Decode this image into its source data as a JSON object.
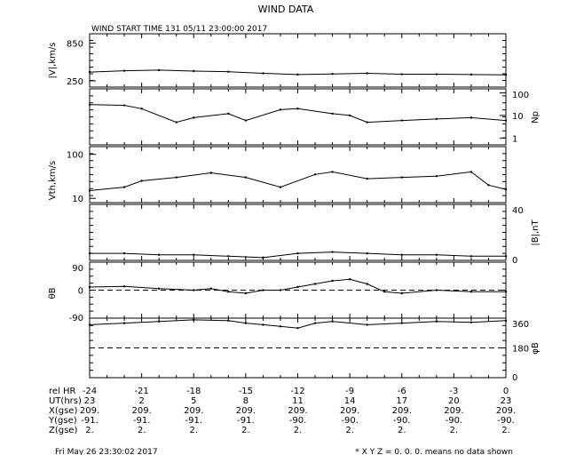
{
  "title": "WIND DATA",
  "subtitle": "WIND START TIME 131 05/11 23:00:00 2017",
  "footer": {
    "timestamp": "Fri May 26 23:30:02 2017",
    "note": "* X Y Z = 0. 0. 0. means no data shown"
  },
  "chart_data": [
    {
      "type": "line",
      "panel": "speed",
      "ylabel": "|V|,km/s",
      "ytick_labels_left": [
        "850",
        "250"
      ],
      "ylim": [
        150,
        1000
      ],
      "x": [
        -24,
        -22,
        -20,
        -18,
        -16,
        -14,
        -12,
        -10,
        -8,
        -6,
        -4,
        -2,
        0
      ],
      "values": [
        390,
        410,
        420,
        405,
        395,
        370,
        350,
        360,
        370,
        355,
        355,
        350,
        345
      ]
    },
    {
      "type": "line",
      "panel": "density",
      "ylabel_right": "Np",
      "ytick_labels_right": [
        "100",
        "10",
        "1"
      ],
      "yscale": "log",
      "ylim": [
        0.5,
        150
      ],
      "x": [
        -24,
        -22,
        -21,
        -19,
        -18,
        -16,
        -15,
        -13,
        -12,
        -10,
        -9,
        -8,
        -6,
        -4,
        -2,
        0
      ],
      "values": [
        30,
        28,
        20,
        5,
        8,
        12,
        6,
        18,
        20,
        12,
        10,
        5,
        6,
        7,
        8,
        6
      ]
    },
    {
      "type": "line",
      "panel": "thermal_speed",
      "ylabel": "Vth,km/s",
      "ytick_labels_left": [
        "100",
        "10"
      ],
      "yscale": "log",
      "ylim": [
        8,
        150
      ],
      "x": [
        -24,
        -22,
        -21,
        -19,
        -17,
        -15,
        -13,
        -11,
        -10,
        -8,
        -6,
        -4,
        -2,
        -1,
        0
      ],
      "values": [
        15,
        18,
        25,
        30,
        38,
        30,
        18,
        35,
        40,
        28,
        30,
        32,
        40,
        20,
        16
      ]
    },
    {
      "type": "line",
      "panel": "field_magnitude",
      "ylabel_right": "|B|,nT",
      "ytick_labels_right": [
        "40",
        "0"
      ],
      "ylim": [
        0,
        40
      ],
      "x": [
        -24,
        -22,
        -20,
        -18,
        -16,
        -14,
        -12,
        -10,
        -8,
        -6,
        -4,
        -2,
        0
      ],
      "values": [
        5,
        5,
        4,
        4,
        3,
        2,
        5,
        6,
        5,
        4,
        4,
        3,
        3
      ]
    },
    {
      "type": "scatter",
      "panel": "theta_b",
      "ylabel": "θB",
      "ytick_labels_left": [
        "90",
        "0",
        "-90"
      ],
      "ylim": [
        -90,
        90
      ],
      "x": [
        -24,
        -22,
        -20,
        -18,
        -17,
        -16,
        -15,
        -14,
        -13,
        -12,
        -11,
        -10,
        -9,
        -8,
        -7,
        -6,
        -4,
        -2,
        0
      ],
      "values": [
        10,
        12,
        5,
        0,
        5,
        -5,
        -10,
        0,
        0,
        10,
        20,
        30,
        35,
        20,
        -5,
        -10,
        0,
        -5,
        -5
      ]
    },
    {
      "type": "scatter",
      "panel": "phi_b",
      "ylabel_right": "φB",
      "ytick_labels_right": [
        "360",
        "180",
        "0"
      ],
      "ylim": [
        0,
        360
      ],
      "x": [
        -24,
        -22,
        -20,
        -18,
        -16,
        -15,
        -14,
        -13,
        -12,
        -11,
        -10,
        -8,
        -6,
        -4,
        -2,
        0
      ],
      "values": [
        320,
        330,
        340,
        350,
        345,
        330,
        320,
        310,
        300,
        330,
        340,
        320,
        330,
        340,
        335,
        345
      ]
    }
  ],
  "x_axis": {
    "tick_values": [
      -24,
      -21,
      -18,
      -15,
      -12,
      -9,
      -6,
      -3,
      0
    ],
    "rows": [
      {
        "label": "rel HR",
        "values": [
          "-24",
          "-21",
          "-18",
          "-15",
          "-12",
          "-9",
          "-6",
          "-3",
          "0"
        ]
      },
      {
        "label": "UT(hrs)",
        "values": [
          "23",
          "2",
          "5",
          "8",
          "11",
          "14",
          "17",
          "20",
          "23"
        ]
      },
      {
        "label": "X(gse)",
        "values": [
          "209.",
          "209.",
          "209.",
          "209.",
          "209.",
          "209.",
          "209.",
          "209.",
          "209."
        ]
      },
      {
        "label": "Y(gse)",
        "values": [
          "-91.",
          "-91.",
          "-91.",
          "-91.",
          "-90.",
          "-90.",
          "-90.",
          "-90.",
          "-90."
        ]
      },
      {
        "label": "Z(gse)",
        "values": [
          "2.",
          "2.",
          "2.",
          "2.",
          "2.",
          "2.",
          "2.",
          "2.",
          "2."
        ]
      }
    ]
  }
}
